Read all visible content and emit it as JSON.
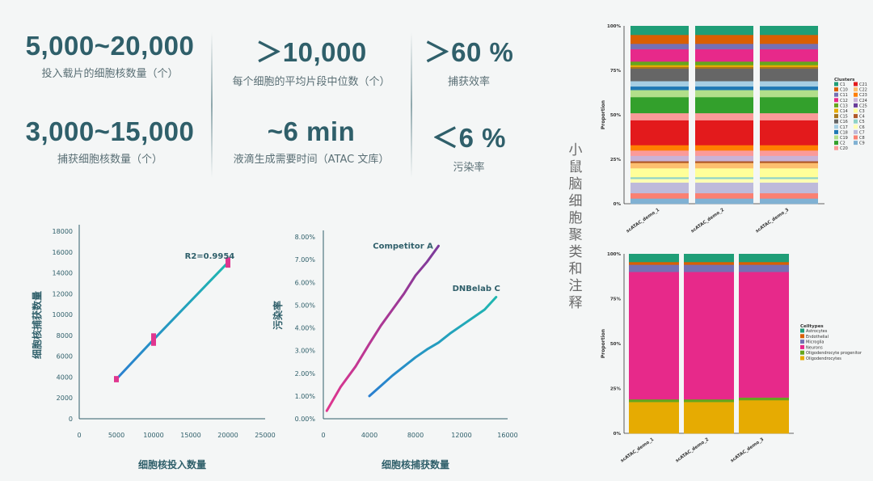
{
  "stats": [
    {
      "value": "5,000~20,000",
      "label": "投入载片的细胞核数量（个）"
    },
    {
      "value": "＞10,000",
      "label": "每个细胞的平均片段中位数（个）"
    },
    {
      "value": "＞60 %",
      "label": "捕获效率"
    },
    {
      "value": "3,000~15,000",
      "label": "捕获细胞核数量（个）"
    },
    {
      "value": "~6 min",
      "label": "液滴生成需要时间（ATAC 文库）"
    },
    {
      "value": "＜6 %",
      "label": "污染率"
    }
  ],
  "side_title": "小鼠脑细胞聚类和注释",
  "colors": {
    "accent": "#2f5f6a",
    "pink": "#e0368f",
    "teal": "#1fb7b0",
    "blue": "#2a7fd0",
    "purple": "#7a3a9a"
  },
  "chart_data": [
    {
      "type": "line",
      "xlabel": "细胞核投入数量",
      "ylabel": "细胞核捕获数量",
      "annotation": "R2=0.9954",
      "xlim": [
        0,
        25000
      ],
      "ylim": [
        0,
        18000
      ],
      "xticks": [
        "0",
        "5000",
        "10000",
        "15000",
        "20000",
        "25000"
      ],
      "yticks": [
        "0",
        "2000",
        "4000",
        "6000",
        "8000",
        "10000",
        "12000",
        "14000",
        "16000",
        "18000"
      ],
      "series": [
        {
          "x": [
            5000,
            10000,
            20000
          ],
          "y": [
            3800,
            7600,
            15000
          ]
        }
      ],
      "error_bars": [
        {
          "x": 5000,
          "low": 3500,
          "high": 4100
        },
        {
          "x": 10000,
          "low": 7000,
          "high": 8200
        },
        {
          "x": 20000,
          "low": 14500,
          "high": 15500
        }
      ]
    },
    {
      "type": "line",
      "xlabel": "细胞核捕获数量",
      "ylabel": "污染率",
      "xlim": [
        0,
        16000
      ],
      "ylim": [
        0,
        8
      ],
      "xticks": [
        "0",
        "4000",
        "8000",
        "12000",
        "16000"
      ],
      "yticks": [
        "0.00%",
        "1.00%",
        "2.00%",
        "3.00%",
        "4.00%",
        "5.00%",
        "6.00%",
        "7.00%",
        "8.00%"
      ],
      "series": [
        {
          "name": "Competitor A",
          "x": [
            300,
            1500,
            2800,
            4000,
            5000,
            6000,
            7000,
            8000,
            9000,
            10000
          ],
          "y": [
            0.35,
            1.4,
            2.3,
            3.3,
            4.1,
            4.8,
            5.5,
            6.3,
            6.9,
            7.6
          ]
        },
        {
          "name": "DNBelab C",
          "x": [
            4000,
            5000,
            6000,
            7000,
            8000,
            9000,
            10000,
            11000,
            12000,
            13000,
            14000,
            15000
          ],
          "y": [
            1.0,
            1.45,
            1.9,
            2.3,
            2.7,
            3.05,
            3.35,
            3.75,
            4.1,
            4.45,
            4.8,
            5.35
          ]
        }
      ]
    },
    {
      "type": "bar",
      "stacked": true,
      "ylabel": "Proportion",
      "categories": [
        "scATAC_demo_1",
        "scATAC_demo_2",
        "scATAC_demo_3"
      ],
      "yticks": [
        "0%",
        "25%",
        "50%",
        "75%",
        "100%"
      ],
      "legend_title": "Clusters",
      "legend": [
        {
          "label": "C1",
          "color": "#1f9e77"
        },
        {
          "label": "C10",
          "color": "#d95f02"
        },
        {
          "label": "C11",
          "color": "#7570b3"
        },
        {
          "label": "C12",
          "color": "#e7298a"
        },
        {
          "label": "C13",
          "color": "#66a61e"
        },
        {
          "label": "C14",
          "color": "#e6ab02"
        },
        {
          "label": "C15",
          "color": "#a6761d"
        },
        {
          "label": "C16",
          "color": "#666666"
        },
        {
          "label": "C17",
          "color": "#a6cee3"
        },
        {
          "label": "C18",
          "color": "#1f78b4"
        },
        {
          "label": "C19",
          "color": "#b2df8a"
        },
        {
          "label": "C2",
          "color": "#33a02c"
        },
        {
          "label": "C20",
          "color": "#fb9a99"
        },
        {
          "label": "C21",
          "color": "#e31a1c"
        },
        {
          "label": "C22",
          "color": "#fdbf6f"
        },
        {
          "label": "C23",
          "color": "#ff7f00"
        },
        {
          "label": "C24",
          "color": "#cab2d6"
        },
        {
          "label": "C25",
          "color": "#6a3d9a"
        },
        {
          "label": "C3",
          "color": "#ffff99"
        },
        {
          "label": "C4",
          "color": "#b15928"
        },
        {
          "label": "C5",
          "color": "#8dd3c7"
        },
        {
          "label": "C6",
          "color": "#ffffb3"
        },
        {
          "label": "C7",
          "color": "#bebada"
        },
        {
          "label": "C8",
          "color": "#fb8072"
        },
        {
          "label": "C9",
          "color": "#80b1d3"
        }
      ],
      "segments": [
        {
          "color": "#80b1d3",
          "value": 3
        },
        {
          "color": "#fb8072",
          "value": 3
        },
        {
          "color": "#bebada",
          "value": 6
        },
        {
          "color": "#ffffb3",
          "value": 2
        },
        {
          "color": "#8dd3c7",
          "value": 1
        },
        {
          "color": "#ffff99",
          "value": 5
        },
        {
          "color": "#fdbf6f",
          "value": 3
        },
        {
          "color": "#b15928",
          "value": 1
        },
        {
          "color": "#cab2d6",
          "value": 3
        },
        {
          "color": "#fb9a99",
          "value": 3
        },
        {
          "color": "#ff7f00",
          "value": 3
        },
        {
          "color": "#e31a1c",
          "value": 14
        },
        {
          "color": "#fb9a99",
          "value": 4
        },
        {
          "color": "#33a02c",
          "value": 9
        },
        {
          "color": "#b2df8a",
          "value": 4
        },
        {
          "color": "#1f78b4",
          "value": 2
        },
        {
          "color": "#a6cee3",
          "value": 3
        },
        {
          "color": "#666666",
          "value": 7
        },
        {
          "color": "#a6761d",
          "value": 1
        },
        {
          "color": "#e6ab02",
          "value": 1
        },
        {
          "color": "#66a61e",
          "value": 2
        },
        {
          "color": "#e7298a",
          "value": 7
        },
        {
          "color": "#7570b3",
          "value": 3
        },
        {
          "color": "#d95f02",
          "value": 5
        },
        {
          "color": "#1f9e77",
          "value": 5
        }
      ]
    },
    {
      "type": "bar",
      "stacked": true,
      "ylabel": "Proportion",
      "categories": [
        "scATAC_demo_1",
        "scATAC_demo_2",
        "scATAC_demo_3"
      ],
      "yticks": [
        "0%",
        "25%",
        "50%",
        "75%",
        "100%"
      ],
      "legend_title": "Celltypes",
      "legend": [
        {
          "label": "Astrocytes",
          "color": "#1f9e77"
        },
        {
          "label": "Endothelial",
          "color": "#d95f02"
        },
        {
          "label": "Microglia",
          "color": "#7570b3"
        },
        {
          "label": "Neurons",
          "color": "#e7298a"
        },
        {
          "label": "Oligodendrocyte progenitor",
          "color": "#66a61e"
        },
        {
          "label": "Oligodendrocytes",
          "color": "#e6ab02"
        }
      ],
      "stacks": [
        [
          {
            "color": "#e6ab02",
            "value": 17.5
          },
          {
            "color": "#66a61e",
            "value": 1.5
          },
          {
            "color": "#e7298a",
            "value": 71
          },
          {
            "color": "#7570b3",
            "value": 4
          },
          {
            "color": "#d95f02",
            "value": 1.5
          },
          {
            "color": "#1f9e77",
            "value": 4.5
          }
        ],
        [
          {
            "color": "#e6ab02",
            "value": 17.5
          },
          {
            "color": "#66a61e",
            "value": 1.5
          },
          {
            "color": "#e7298a",
            "value": 71
          },
          {
            "color": "#7570b3",
            "value": 4
          },
          {
            "color": "#d95f02",
            "value": 1.5
          },
          {
            "color": "#1f9e77",
            "value": 4.5
          }
        ],
        [
          {
            "color": "#e6ab02",
            "value": 18.5
          },
          {
            "color": "#66a61e",
            "value": 1.5
          },
          {
            "color": "#e7298a",
            "value": 70
          },
          {
            "color": "#7570b3",
            "value": 4
          },
          {
            "color": "#d95f02",
            "value": 1.5
          },
          {
            "color": "#1f9e77",
            "value": 4.5
          }
        ]
      ]
    }
  ]
}
